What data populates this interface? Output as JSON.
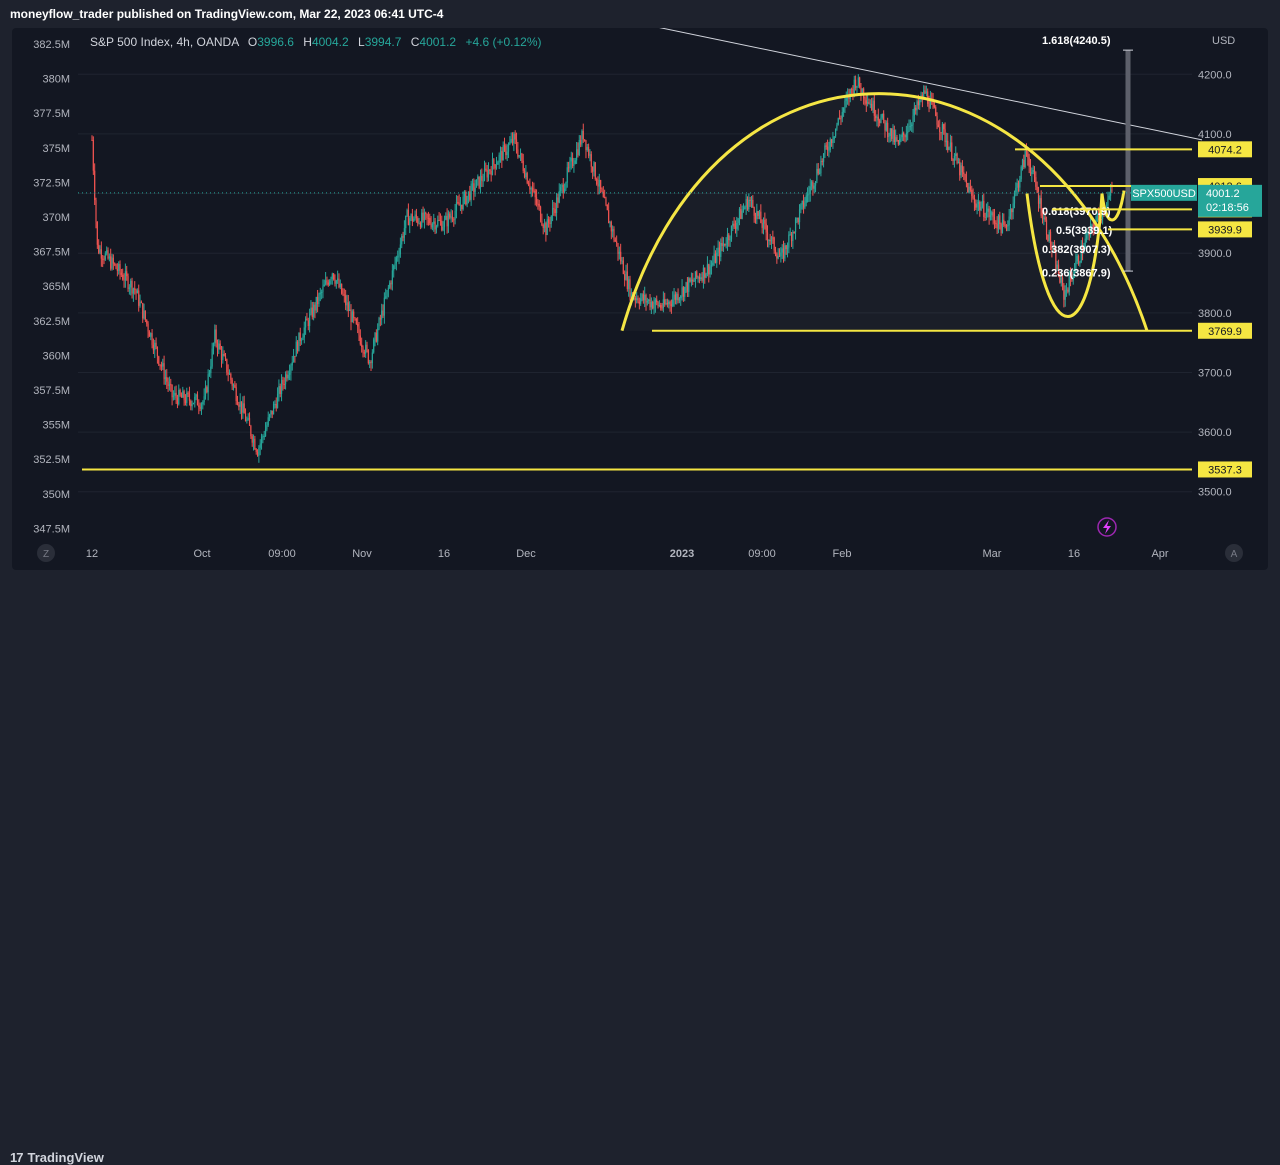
{
  "header": {
    "published": "moneyflow_trader published on TradingView.com, Mar 22, 2023 06:41 UTC-4"
  },
  "legend": {
    "symbol": "S&P 500 Index, 4h, OANDA",
    "open_label": "O",
    "open": "3996.6",
    "high_label": "H",
    "high": "4004.2",
    "low_label": "L",
    "low": "3994.7",
    "close_label": "C",
    "close": "4001.2",
    "change": "+4.6 (+0.12%)"
  },
  "chart_data": {
    "type": "candlestick",
    "symbol": "SPX500USD",
    "timeframe": "4h",
    "right_axis": {
      "currency": "USD",
      "ticks": [
        3500,
        3600,
        3700,
        3800,
        3900,
        4000,
        4100,
        4200
      ],
      "tick_labels": [
        "3500.0",
        "3600.0",
        "3700.0",
        "3800.0",
        "3900.0",
        "4000.0",
        "4100.0",
        "4200.0"
      ]
    },
    "left_axis": {
      "ticks": [
        "347.5M",
        "350M",
        "352.5M",
        "355M",
        "357.5M",
        "360M",
        "362.5M",
        "365M",
        "367.5M",
        "370M",
        "372.5M",
        "375M",
        "377.5M",
        "380M",
        "382.5M"
      ]
    },
    "x_axis": {
      "ticks": [
        "12",
        "Oct",
        "09:00",
        "Nov",
        "16",
        "Dec",
        "2023",
        "09:00",
        "Feb",
        "Mar",
        "16",
        "Apr"
      ]
    },
    "price_path": [
      [
        "Sep 12",
        4090
      ],
      [
        "Sep 13",
        3910
      ],
      [
        "Sep 20",
        3840
      ],
      [
        "Sep 27",
        3660
      ],
      [
        "Oct 3",
        3650
      ],
      [
        "Oct 5",
        3760
      ],
      [
        "Oct 13",
        3570
      ],
      [
        "Oct 21",
        3760
      ],
      [
        "Oct 27",
        3870
      ],
      [
        "Nov 3",
        3720
      ],
      [
        "Nov 10",
        3960
      ],
      [
        "Nov 17",
        3950
      ],
      [
        "Nov 30",
        4090
      ],
      [
        "Dec 6",
        3940
      ],
      [
        "Dec 13",
        4100
      ],
      [
        "Dec 22",
        3830
      ],
      [
        "Dec 28",
        3810
      ],
      [
        "Jan 6",
        3880
      ],
      [
        "Jan 13",
        3990
      ],
      [
        "Jan 19",
        3890
      ],
      [
        "Jan 25",
        4020
      ],
      [
        "Feb 2",
        4190
      ],
      [
        "Feb 10",
        4080
      ],
      [
        "Feb 15",
        4170
      ],
      [
        "Feb 24",
        3990
      ],
      [
        "Mar 2",
        3940
      ],
      [
        "Mar 6",
        4070
      ],
      [
        "Mar 13",
        3830
      ],
      [
        "Mar 17",
        3920
      ],
      [
        "Mar 22",
        4001.2
      ]
    ],
    "current_price": {
      "label": "SPX500USD",
      "value": "4001.2",
      "countdown": "02:18:56"
    },
    "horizontal_levels": [
      {
        "value": 4074.2,
        "label": "4074.2"
      },
      {
        "value": 4012.6,
        "label": "4012.6"
      },
      {
        "value": 3973.5,
        "label": "3973.5"
      },
      {
        "value": 3939.9,
        "label": "3939.9"
      },
      {
        "value": 3769.9,
        "label": "3769.9"
      },
      {
        "value": 3537.3,
        "label": "3537.3"
      }
    ],
    "fibonacci": [
      {
        "label": "1.618(4240.5)"
      },
      {
        "label": "0.618(3970.9)"
      },
      {
        "label": "0.5(3939.1)"
      },
      {
        "label": "0.382(3907.3)"
      },
      {
        "label": "0.236(3867.9)"
      }
    ],
    "drawings": [
      "rounding-top arc",
      "descending trendline",
      "cup-and-handle curve"
    ],
    "colors": {
      "up": "#26a69a",
      "down": "#ef5350",
      "drawing": "#f5e642",
      "background": "#131722"
    }
  },
  "axis_buttons": {
    "left": "Z",
    "right": "A"
  },
  "footer": {
    "brand": "TradingView",
    "mark": "17"
  }
}
